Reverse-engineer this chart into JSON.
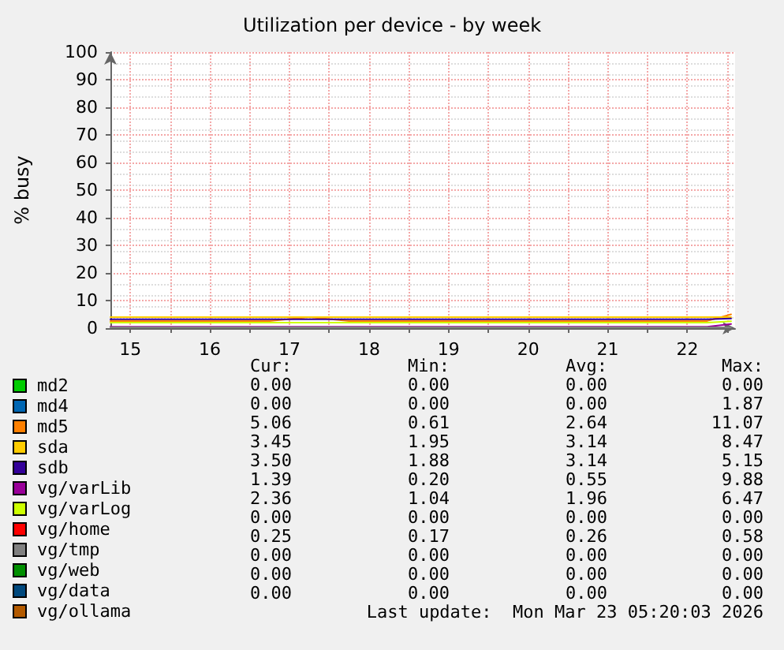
{
  "chart_data": {
    "type": "line",
    "title": "Utilization per device - by week",
    "ylabel": "% busy",
    "x": [
      15.25,
      15.75,
      16.25,
      16.75,
      17.25,
      17.75,
      18.25,
      18.75,
      19.25,
      19.75,
      20.25,
      20.75,
      21.25,
      21.75,
      22.25,
      22.75,
      23.05
    ],
    "xlim": [
      15.25,
      23.1
    ],
    "xticks": [
      {
        "value": 15.5,
        "label": "15"
      },
      {
        "value": 16,
        "label": null
      },
      {
        "value": 16.5,
        "label": "16"
      },
      {
        "value": 17,
        "label": null
      },
      {
        "value": 17.5,
        "label": "17"
      },
      {
        "value": 18,
        "label": null
      },
      {
        "value": 18.5,
        "label": "18"
      },
      {
        "value": 19,
        "label": null
      },
      {
        "value": 19.5,
        "label": "19"
      },
      {
        "value": 20,
        "label": null
      },
      {
        "value": 20.5,
        "label": "20"
      },
      {
        "value": 21,
        "label": null
      },
      {
        "value": 21.5,
        "label": "21"
      },
      {
        "value": 22,
        "label": null
      },
      {
        "value": 22.5,
        "label": "22"
      },
      {
        "value": 23,
        "label": null
      }
    ],
    "ylim": [
      0,
      100
    ],
    "yticks": [
      0,
      10,
      20,
      30,
      40,
      50,
      60,
      70,
      80,
      90,
      100
    ],
    "grid": true,
    "legend": "bottom left",
    "marker": "none",
    "line_style": "solid",
    "series": [
      {
        "name": "md2",
        "color": "#00cc00",
        "values": [
          null,
          null,
          null,
          null,
          null,
          null,
          null,
          null,
          null,
          null,
          null,
          null,
          null,
          null,
          null,
          null,
          null
        ]
      },
      {
        "name": "md4",
        "color": "#0066b3",
        "values": [
          null,
          null,
          null,
          null,
          null,
          null,
          null,
          null,
          null,
          null,
          null,
          null,
          null,
          null,
          null,
          null,
          null
        ]
      },
      {
        "name": "md5",
        "color": "#ff8000",
        "values": [
          2.6,
          2.6,
          2.6,
          2.6,
          2.6,
          4,
          2.6,
          2.6,
          2.6,
          2.6,
          2.6,
          2.6,
          2.6,
          2.6,
          2.6,
          2.6,
          5
        ]
      },
      {
        "name": "sda",
        "color": "#ffcc00",
        "values": [
          4,
          4,
          4,
          4,
          4,
          4,
          4,
          4,
          4,
          4,
          4,
          4,
          4,
          4,
          4,
          4,
          4
        ]
      },
      {
        "name": "sdb",
        "color": "#330099",
        "values": [
          3.2,
          3.2,
          3.2,
          3.2,
          3.2,
          3.2,
          3.2,
          3.2,
          3.2,
          3.2,
          3.2,
          3.2,
          3.2,
          3.2,
          3.2,
          3.2,
          3.5
        ]
      },
      {
        "name": "vg/varLib",
        "color": "#990099",
        "values": [
          0.5,
          0.5,
          0.5,
          0.5,
          0.5,
          0.5,
          0.5,
          0.5,
          0.5,
          0.5,
          0.5,
          0.5,
          0.5,
          0.5,
          0.5,
          0.5,
          1.5
        ]
      },
      {
        "name": "vg/varLog",
        "color": "#ccff00",
        "values": [
          2,
          2,
          2,
          2,
          2,
          2,
          2,
          2,
          2,
          2,
          2,
          2,
          2,
          2,
          2,
          2,
          2.5
        ]
      },
      {
        "name": "vg/home",
        "color": "#ff0000",
        "values": [
          null,
          null,
          null,
          null,
          null,
          null,
          null,
          null,
          null,
          null,
          null,
          null,
          null,
          null,
          null,
          null,
          null
        ]
      },
      {
        "name": "vg/tmp",
        "color": "#808080",
        "values": [
          0.3,
          0.3,
          0.3,
          0.3,
          0.3,
          0.3,
          0.3,
          0.3,
          0.3,
          0.3,
          0.3,
          0.3,
          0.3,
          0.3,
          0.3,
          0.3,
          0.3
        ]
      },
      {
        "name": "vg/web",
        "color": "#008f00",
        "values": [
          null,
          null,
          null,
          null,
          null,
          null,
          null,
          null,
          null,
          null,
          null,
          null,
          null,
          null,
          null,
          null,
          null
        ]
      },
      {
        "name": "vg/data",
        "color": "#00487d",
        "values": [
          null,
          null,
          null,
          null,
          null,
          null,
          null,
          null,
          null,
          null,
          null,
          null,
          null,
          null,
          null,
          null,
          null
        ]
      },
      {
        "name": "vg/ollama",
        "color": "#b35a00",
        "values": [
          null,
          null,
          null,
          null,
          null,
          null,
          null,
          null,
          null,
          null,
          null,
          null,
          null,
          null,
          null,
          null,
          null
        ]
      }
    ],
    "annotations": [
      "Cur:",
      "Min:",
      "Avg:",
      "Max:",
      "0.00",
      "0.00",
      "0.00",
      "0.00",
      "0.00",
      "0.00",
      "0.00",
      "1.87",
      "5.06",
      "0.61",
      "2.64",
      "11.07",
      "3.45",
      "1.95",
      "3.14",
      "8.47",
      "3.50",
      "1.88",
      "3.14",
      "5.15",
      "1.39",
      "0.20",
      "0.55",
      "9.88",
      "2.36",
      "1.04",
      "1.96",
      "6.47",
      "0.00",
      "0.00",
      "0.00",
      "0.00",
      "0.25",
      "0.17",
      "0.26",
      "0.58",
      "0.00",
      "0.00",
      "0.00",
      "0.00",
      "0.00",
      "0.00",
      "0.00",
      "0.00",
      "0.00",
      "0.00",
      "0.00",
      "0.00",
      "Last update:  Mon Mar 23 05:20:03 2026"
    ]
  }
}
